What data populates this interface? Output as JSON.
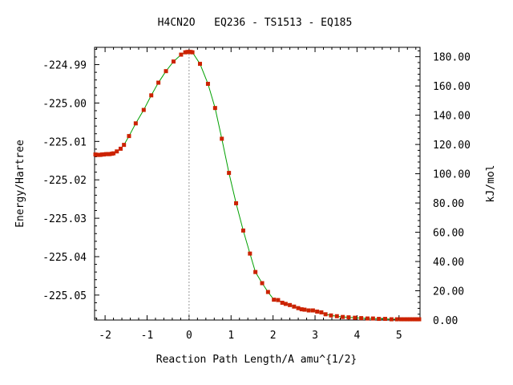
{
  "chart_data": {
    "type": "line",
    "title": "H4CN2O   EQ236 - TS1513 - EQ185",
    "xlabel": "Reaction Path Length/A amu^{1/2}",
    "ylabel": "Energy/Hartree",
    "y2label": "kJ/mol",
    "xlim": [
      -2.25,
      5.5
    ],
    "ylim": [
      -225.0565,
      -224.9855
    ],
    "y2lim": [
      0.0,
      186.4
    ],
    "x_ticks": [
      -2,
      -1,
      0,
      1,
      2,
      3,
      4,
      5
    ],
    "x_tick_labels": [
      "-2",
      "-1",
      "0",
      "1",
      "2",
      "3",
      "4",
      "5"
    ],
    "y_ticks": [
      -224.99,
      -225.0,
      -225.01,
      -225.02,
      -225.03,
      -225.04,
      -225.05
    ],
    "y_tick_labels": [
      "-224.99",
      "-225.00",
      "-225.01",
      "-225.02",
      "-225.03",
      "-225.04",
      "-225.05"
    ],
    "y2_ticks": [
      0,
      20,
      40,
      60,
      80,
      100,
      120,
      140,
      160,
      180
    ],
    "y2_tick_labels": [
      "0.00",
      "20.00",
      "40.00",
      "60.00",
      "80.00",
      "100.00",
      "120.00",
      "140.00",
      "160.00",
      "180.00"
    ],
    "ts_x": 0,
    "line_color": "#00a000",
    "marker_color": "#cc2200",
    "ts_line_color": "#999999",
    "series": [
      {
        "x": [
          -2.23,
          -2.19,
          -2.15,
          -2.11,
          -2.07,
          -2.03,
          -1.98,
          -1.93,
          -1.89,
          -1.84,
          -1.8,
          -1.72,
          -1.63,
          -1.55,
          -1.43,
          -1.27,
          -1.08,
          -0.9,
          -0.73,
          -0.55,
          -0.37,
          -0.19,
          -0.09,
          -0.04,
          0.0,
          0.04,
          0.08,
          0.26,
          0.45,
          0.62,
          0.78,
          0.95,
          1.12,
          1.29,
          1.45,
          1.58,
          1.74,
          1.88,
          2.02,
          2.12,
          2.22,
          2.3,
          2.4,
          2.5,
          2.6,
          2.68,
          2.75,
          2.85,
          2.95,
          3.05,
          3.15,
          3.25,
          3.38,
          3.52,
          3.66,
          3.8,
          3.95,
          4.1,
          4.25,
          4.38,
          4.52,
          4.67,
          4.82,
          4.95,
          5.05,
          5.13,
          5.2,
          5.26,
          5.32,
          5.38,
          5.43,
          5.48
        ],
        "y": [
          -225.0134,
          -225.0135,
          -225.0135,
          -225.0135,
          -225.0134,
          -225.0134,
          -225.0133,
          -225.0133,
          -225.0133,
          -225.0132,
          -225.0131,
          -225.0126,
          -225.0119,
          -225.0109,
          -225.0086,
          -225.0053,
          -225.0018,
          -224.998,
          -224.9947,
          -224.9917,
          -224.9892,
          -224.9874,
          -224.9868,
          -224.9867,
          -224.9867,
          -224.9867,
          -224.9868,
          -224.9898,
          -224.995,
          -225.0013,
          -225.0093,
          -225.0182,
          -225.0261,
          -225.0332,
          -225.0392,
          -225.044,
          -225.0469,
          -225.0492,
          -225.0512,
          -225.0513,
          -225.052,
          -225.0523,
          -225.0526,
          -225.053,
          -225.0534,
          -225.0537,
          -225.0538,
          -225.054,
          -225.054,
          -225.0543,
          -225.0545,
          -225.055,
          -225.0553,
          -225.0555,
          -225.0557,
          -225.0558,
          -225.0559,
          -225.056,
          -225.0561,
          -225.0561,
          -225.0562,
          -225.0562,
          -225.0563,
          -225.0563,
          -225.0563,
          -225.0563,
          -225.0563,
          -225.0563,
          -225.0563,
          -225.0563,
          -225.0563,
          -225.0563
        ]
      }
    ]
  }
}
